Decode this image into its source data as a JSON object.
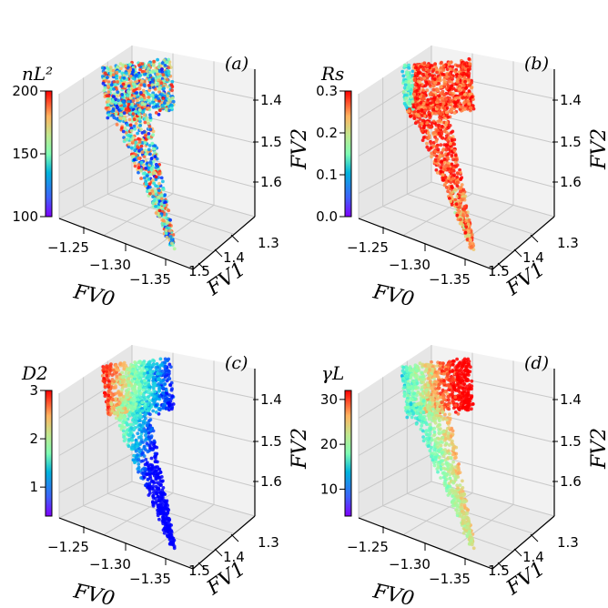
{
  "chart_data": [
    {
      "type": "scatter",
      "panel_label": "(a)",
      "colorbar": {
        "title": "nL²",
        "range": [
          100,
          200
        ],
        "ticks": [
          "100",
          "150",
          "200"
        ],
        "colormap": "rainbow"
      },
      "x_axis": {
        "label": "FV0",
        "ticks": [
          "−1.25",
          "−1.30",
          "−1.35"
        ]
      },
      "y_axis": {
        "label": "FV1",
        "ticks": [
          "1.3",
          "1.4",
          "1.5"
        ]
      },
      "z_axis": {
        "label": "FV2",
        "ticks": [
          "1.4",
          "1.5",
          "1.6"
        ]
      },
      "color_trend": "mixed",
      "grid": true
    },
    {
      "type": "scatter",
      "panel_label": "(b)",
      "colorbar": {
        "title": "Rs",
        "range": [
          0.0,
          0.3
        ],
        "ticks": [
          "0.0",
          "0.1",
          "0.2",
          "0.3"
        ],
        "colormap": "rainbow"
      },
      "x_axis": {
        "label": "FV0",
        "ticks": [
          "−1.25",
          "−1.30",
          "−1.35"
        ]
      },
      "y_axis": {
        "label": "FV1",
        "ticks": [
          "1.3",
          "1.4",
          "1.5"
        ]
      },
      "z_axis": {
        "label": "FV2",
        "ticks": [
          "1.4",
          "1.5",
          "1.6"
        ]
      },
      "color_trend": "high",
      "grid": true
    },
    {
      "type": "scatter",
      "panel_label": "(c)",
      "colorbar": {
        "title": "D2",
        "range": [
          0.4,
          3.0
        ],
        "ticks": [
          "1",
          "2",
          "3"
        ],
        "colormap": "rainbow"
      },
      "x_axis": {
        "label": "FV0",
        "ticks": [
          "−1.25",
          "−1.30",
          "−1.35"
        ]
      },
      "y_axis": {
        "label": "FV1",
        "ticks": [
          "1.3",
          "1.4",
          "1.5"
        ]
      },
      "z_axis": {
        "label": "FV2",
        "ticks": [
          "1.4",
          "1.5",
          "1.6"
        ]
      },
      "color_trend": "gradient-left-high",
      "grid": true
    },
    {
      "type": "scatter",
      "panel_label": "(d)",
      "colorbar": {
        "title": "γL",
        "range": [
          4,
          32
        ],
        "ticks": [
          "10",
          "20",
          "30"
        ],
        "colormap": "rainbow"
      },
      "x_axis": {
        "label": "FV0",
        "ticks": [
          "−1.25",
          "−1.30",
          "−1.35"
        ]
      },
      "y_axis": {
        "label": "FV1",
        "ticks": [
          "1.3",
          "1.4",
          "1.5"
        ]
      },
      "z_axis": {
        "label": "FV2",
        "ticks": [
          "1.4",
          "1.5",
          "1.6"
        ]
      },
      "color_trend": "top-high-left-low",
      "grid": true
    }
  ]
}
